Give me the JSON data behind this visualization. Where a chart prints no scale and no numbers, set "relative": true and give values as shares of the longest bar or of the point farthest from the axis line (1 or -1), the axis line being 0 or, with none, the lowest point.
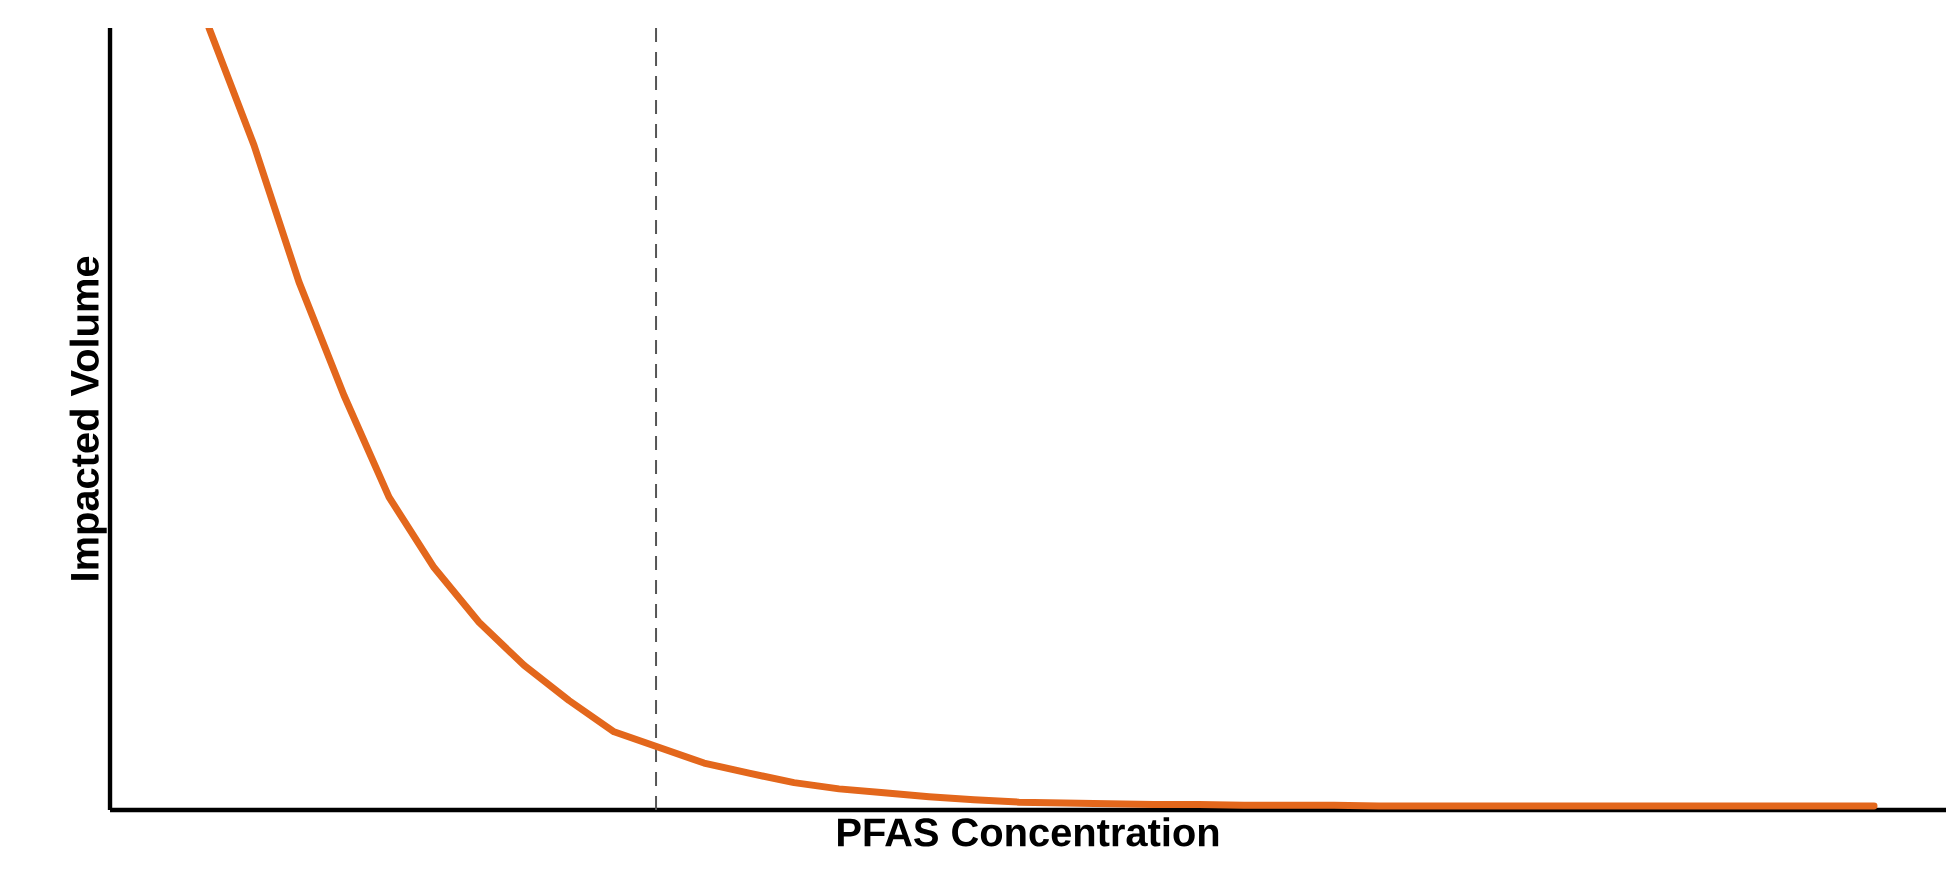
{
  "chart_data": {
    "type": "line",
    "relative": true,
    "xlabel": "PFAS Concentration",
    "ylabel": "Impacted Volume",
    "marker": "none",
    "line_style": "solid",
    "categories": [
      null,
      null,
      null,
      null,
      null,
      null,
      null,
      null,
      null,
      null,
      null,
      null,
      null,
      null,
      null,
      null,
      null,
      null,
      null,
      null,
      null,
      null,
      null,
      null,
      null,
      null,
      null,
      null,
      null,
      null,
      null,
      null,
      null,
      null,
      null,
      null,
      null,
      null
    ],
    "series": [
      {
        "color": "#e3671c",
        "values": [
          1.0,
          0.85,
          0.675,
          0.53,
          0.4,
          0.31,
          0.24,
          0.185,
          0.14,
          0.1,
          0.08,
          0.06,
          0.047,
          0.035,
          0.027,
          0.022,
          0.017,
          0.013,
          0.01,
          0.009,
          0.008,
          0.007,
          0.007,
          0.006,
          0.006,
          0.006,
          0.005,
          0.005,
          0.005,
          0.005,
          0.005,
          0.005,
          0.005,
          0.005,
          0.005,
          0.005,
          0.005,
          0.005
        ]
      }
    ]
  }
}
